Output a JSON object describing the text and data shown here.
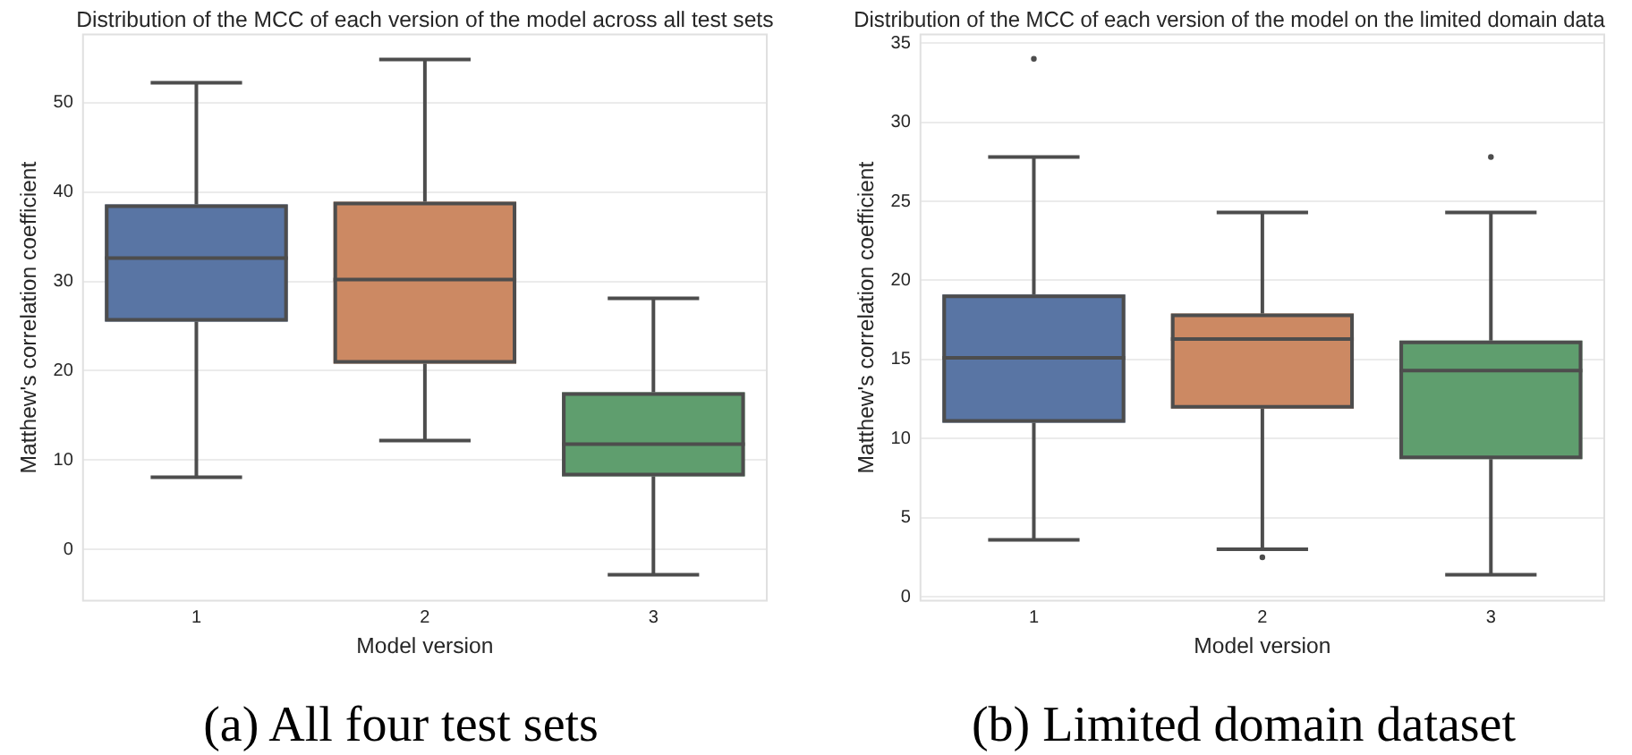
{
  "chart_data": [
    {
      "type": "box",
      "title": "Distribution of the MCC of each version of the model across all test sets",
      "xlabel": "Model version",
      "ylabel": "Matthew's correlation coefficient",
      "categories": [
        "1",
        "2",
        "3"
      ],
      "colors": [
        "#5975a4",
        "#cc8963",
        "#5f9e6e"
      ],
      "boxes": [
        {
          "low": 8.1,
          "q1": 25.5,
          "median": 32.6,
          "q3": 38.6,
          "high": 52.2
        },
        {
          "low": 12.2,
          "q1": 20.8,
          "median": 30.2,
          "q3": 38.9,
          "high": 54.8
        },
        {
          "low": -2.8,
          "q1": 8.2,
          "median": 11.8,
          "q3": 17.6,
          "high": 28.1
        }
      ],
      "ylim": [
        -5.8,
        57.7
      ],
      "yticks": [
        0,
        10,
        20,
        30,
        40,
        50
      ],
      "grid": "y",
      "annotations": [
        "(a) All four test sets"
      ]
    },
    {
      "type": "box",
      "title": "Distribution of the MCC of each version of the model on the limited domain data",
      "xlabel": "Model version",
      "ylabel": "Matthew's correlation coefficient",
      "categories": [
        "1",
        "2",
        "3"
      ],
      "colors": [
        "#5975a4",
        "#cc8963",
        "#5f9e6e"
      ],
      "boxes": [
        {
          "low": 3.6,
          "q1": 11.0,
          "median": 15.1,
          "q3": 19.1,
          "high": 27.8,
          "outliers": [
            34.0
          ]
        },
        {
          "low": 3.0,
          "q1": 11.9,
          "median": 16.3,
          "q3": 17.9,
          "high": 24.3,
          "outliers": [
            2.5
          ]
        },
        {
          "low": 1.4,
          "q1": 8.7,
          "median": 14.3,
          "q3": 16.2,
          "high": 24.3,
          "outliers": [
            27.8
          ]
        }
      ],
      "ylim": [
        -0.3,
        35.6
      ],
      "yticks": [
        0,
        5,
        10,
        15,
        20,
        25,
        30,
        35
      ],
      "grid": "y",
      "annotations": [
        "(b) Limited domain dataset"
      ]
    }
  ]
}
